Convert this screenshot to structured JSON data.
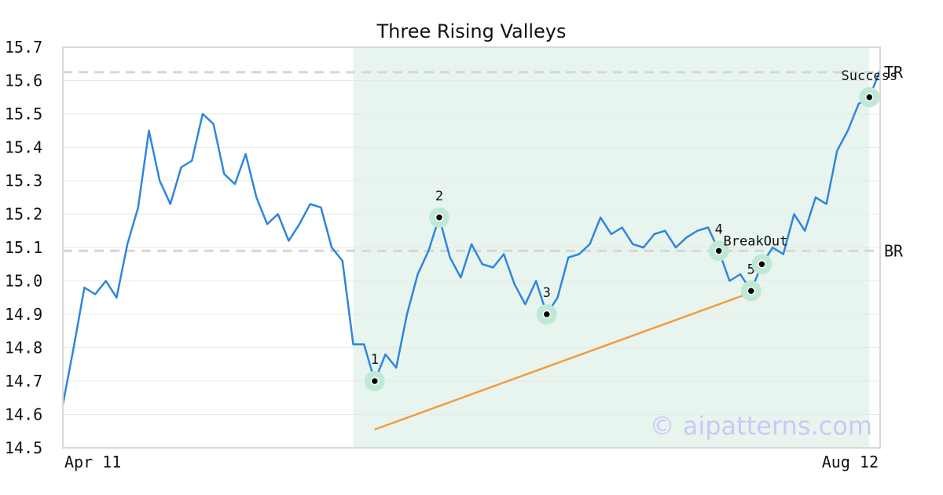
{
  "chart_data": {
    "type": "line",
    "title": "Three Rising Valleys",
    "xlabel": "",
    "ylabel": "",
    "ylim": [
      14.5,
      15.7
    ],
    "yticks": [
      "14.5",
      "14.6",
      "14.7",
      "14.8",
      "14.9",
      "15.0",
      "15.1",
      "15.2",
      "15.3",
      "15.4",
      "15.5",
      "15.6",
      "15.7"
    ],
    "xtick_labels": {
      "start": "Apr 11",
      "end": "Aug 12"
    },
    "grid": true,
    "series": [
      {
        "color": "#2e86de",
        "values": [
          14.63,
          14.8,
          14.98,
          14.96,
          15.0,
          14.95,
          15.11,
          15.22,
          15.45,
          15.3,
          15.23,
          15.34,
          15.36,
          15.5,
          15.47,
          15.32,
          15.29,
          15.38,
          15.25,
          15.17,
          15.2,
          15.12,
          15.17,
          15.23,
          15.22,
          15.1,
          15.06,
          14.81,
          14.81,
          14.7,
          14.78,
          14.74,
          14.9,
          15.02,
          15.09,
          15.19,
          15.07,
          15.01,
          15.11,
          15.05,
          15.04,
          15.08,
          14.99,
          14.93,
          15.0,
          14.9,
          14.95,
          15.07,
          15.08,
          15.11,
          15.19,
          15.14,
          15.16,
          15.11,
          15.1,
          15.14,
          15.15,
          15.1,
          15.13,
          15.15,
          15.16,
          15.09,
          15.0,
          15.02,
          14.97,
          15.05,
          15.1,
          15.08,
          15.2,
          15.15,
          15.25,
          15.23,
          15.39,
          15.45,
          15.53,
          15.55,
          15.63
        ]
      }
    ],
    "reference_lines": [
      {
        "label": "TR",
        "y": 15.625
      },
      {
        "label": "BR",
        "y": 15.09
      }
    ],
    "highlight_region": {
      "from_index": 27,
      "to_index": 75
    },
    "trendline": {
      "from": {
        "index": 29,
        "y": 14.555
      },
      "to": {
        "index": 64,
        "y": 14.965
      }
    },
    "points": [
      {
        "label": "1",
        "index": 29,
        "y": 14.7
      },
      {
        "label": "2",
        "index": 35,
        "y": 15.19
      },
      {
        "label": "3",
        "index": 45,
        "y": 14.9
      },
      {
        "label": "4",
        "index": 61,
        "y": 15.09
      },
      {
        "label": "5",
        "index": 64,
        "y": 14.97
      },
      {
        "label": "BreakOut",
        "index": 65,
        "y": 15.05
      },
      {
        "label": "Success",
        "index": 75,
        "y": 15.55
      }
    ],
    "colors": {
      "line": "#2e86de",
      "trendline": "#f39c3c",
      "highlight": "#e8f5ef",
      "marker_halo": "#bfe9d6",
      "reference": "#d6d6d6"
    }
  },
  "watermark": "© aipatterns.com"
}
